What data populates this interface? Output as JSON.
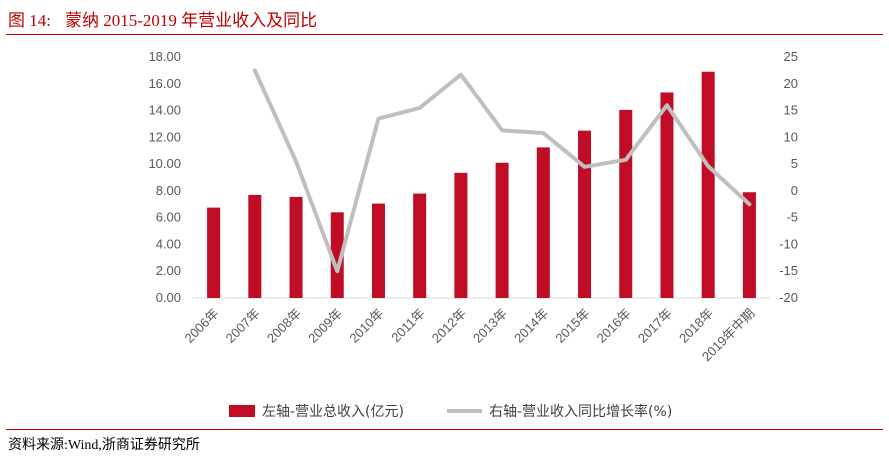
{
  "figure": {
    "label": "图 14:",
    "title": "蒙纳 2015-2019 年营业收入及同比",
    "source": "资料来源:Wind,浙商证券研究所"
  },
  "colors": {
    "bar": "#c00d25",
    "line": "#bfbfbf",
    "rule": "#c00000"
  },
  "chart_data": {
    "type": "bar+line",
    "categories": [
      "2006年",
      "2007年",
      "2008年",
      "2009年",
      "2010年",
      "2011年",
      "2012年",
      "2013年",
      "2014年",
      "2015年",
      "2016年",
      "2017年",
      "2018年",
      "2019年中期"
    ],
    "series": [
      {
        "name": "左轴-营业总收入(亿元)",
        "type": "bar",
        "axis": "left",
        "values": [
          6.75,
          7.7,
          7.55,
          6.4,
          7.05,
          7.8,
          9.35,
          10.1,
          11.25,
          12.5,
          14.05,
          15.35,
          16.9,
          7.9
        ]
      },
      {
        "name": "右轴-营业收入同比增长率(%)",
        "type": "line",
        "axis": "right",
        "values": [
          null,
          22.5,
          5.5,
          -15.0,
          13.5,
          15.5,
          21.7,
          11.3,
          10.8,
          4.5,
          5.8,
          16.0,
          4.6,
          -2.5
        ]
      }
    ],
    "left_axis": {
      "min": 0,
      "max": 18,
      "step": 2,
      "ticks": [
        "0.00",
        "2.00",
        "4.00",
        "6.00",
        "8.00",
        "10.00",
        "12.00",
        "14.00",
        "16.00",
        "18.00"
      ]
    },
    "right_axis": {
      "min": -20,
      "max": 25,
      "step": 5,
      "ticks": [
        "-20",
        "-15",
        "-10",
        "-5",
        "0",
        "5",
        "10",
        "15",
        "20",
        "25"
      ]
    },
    "grid": false,
    "legend_position": "bottom"
  }
}
